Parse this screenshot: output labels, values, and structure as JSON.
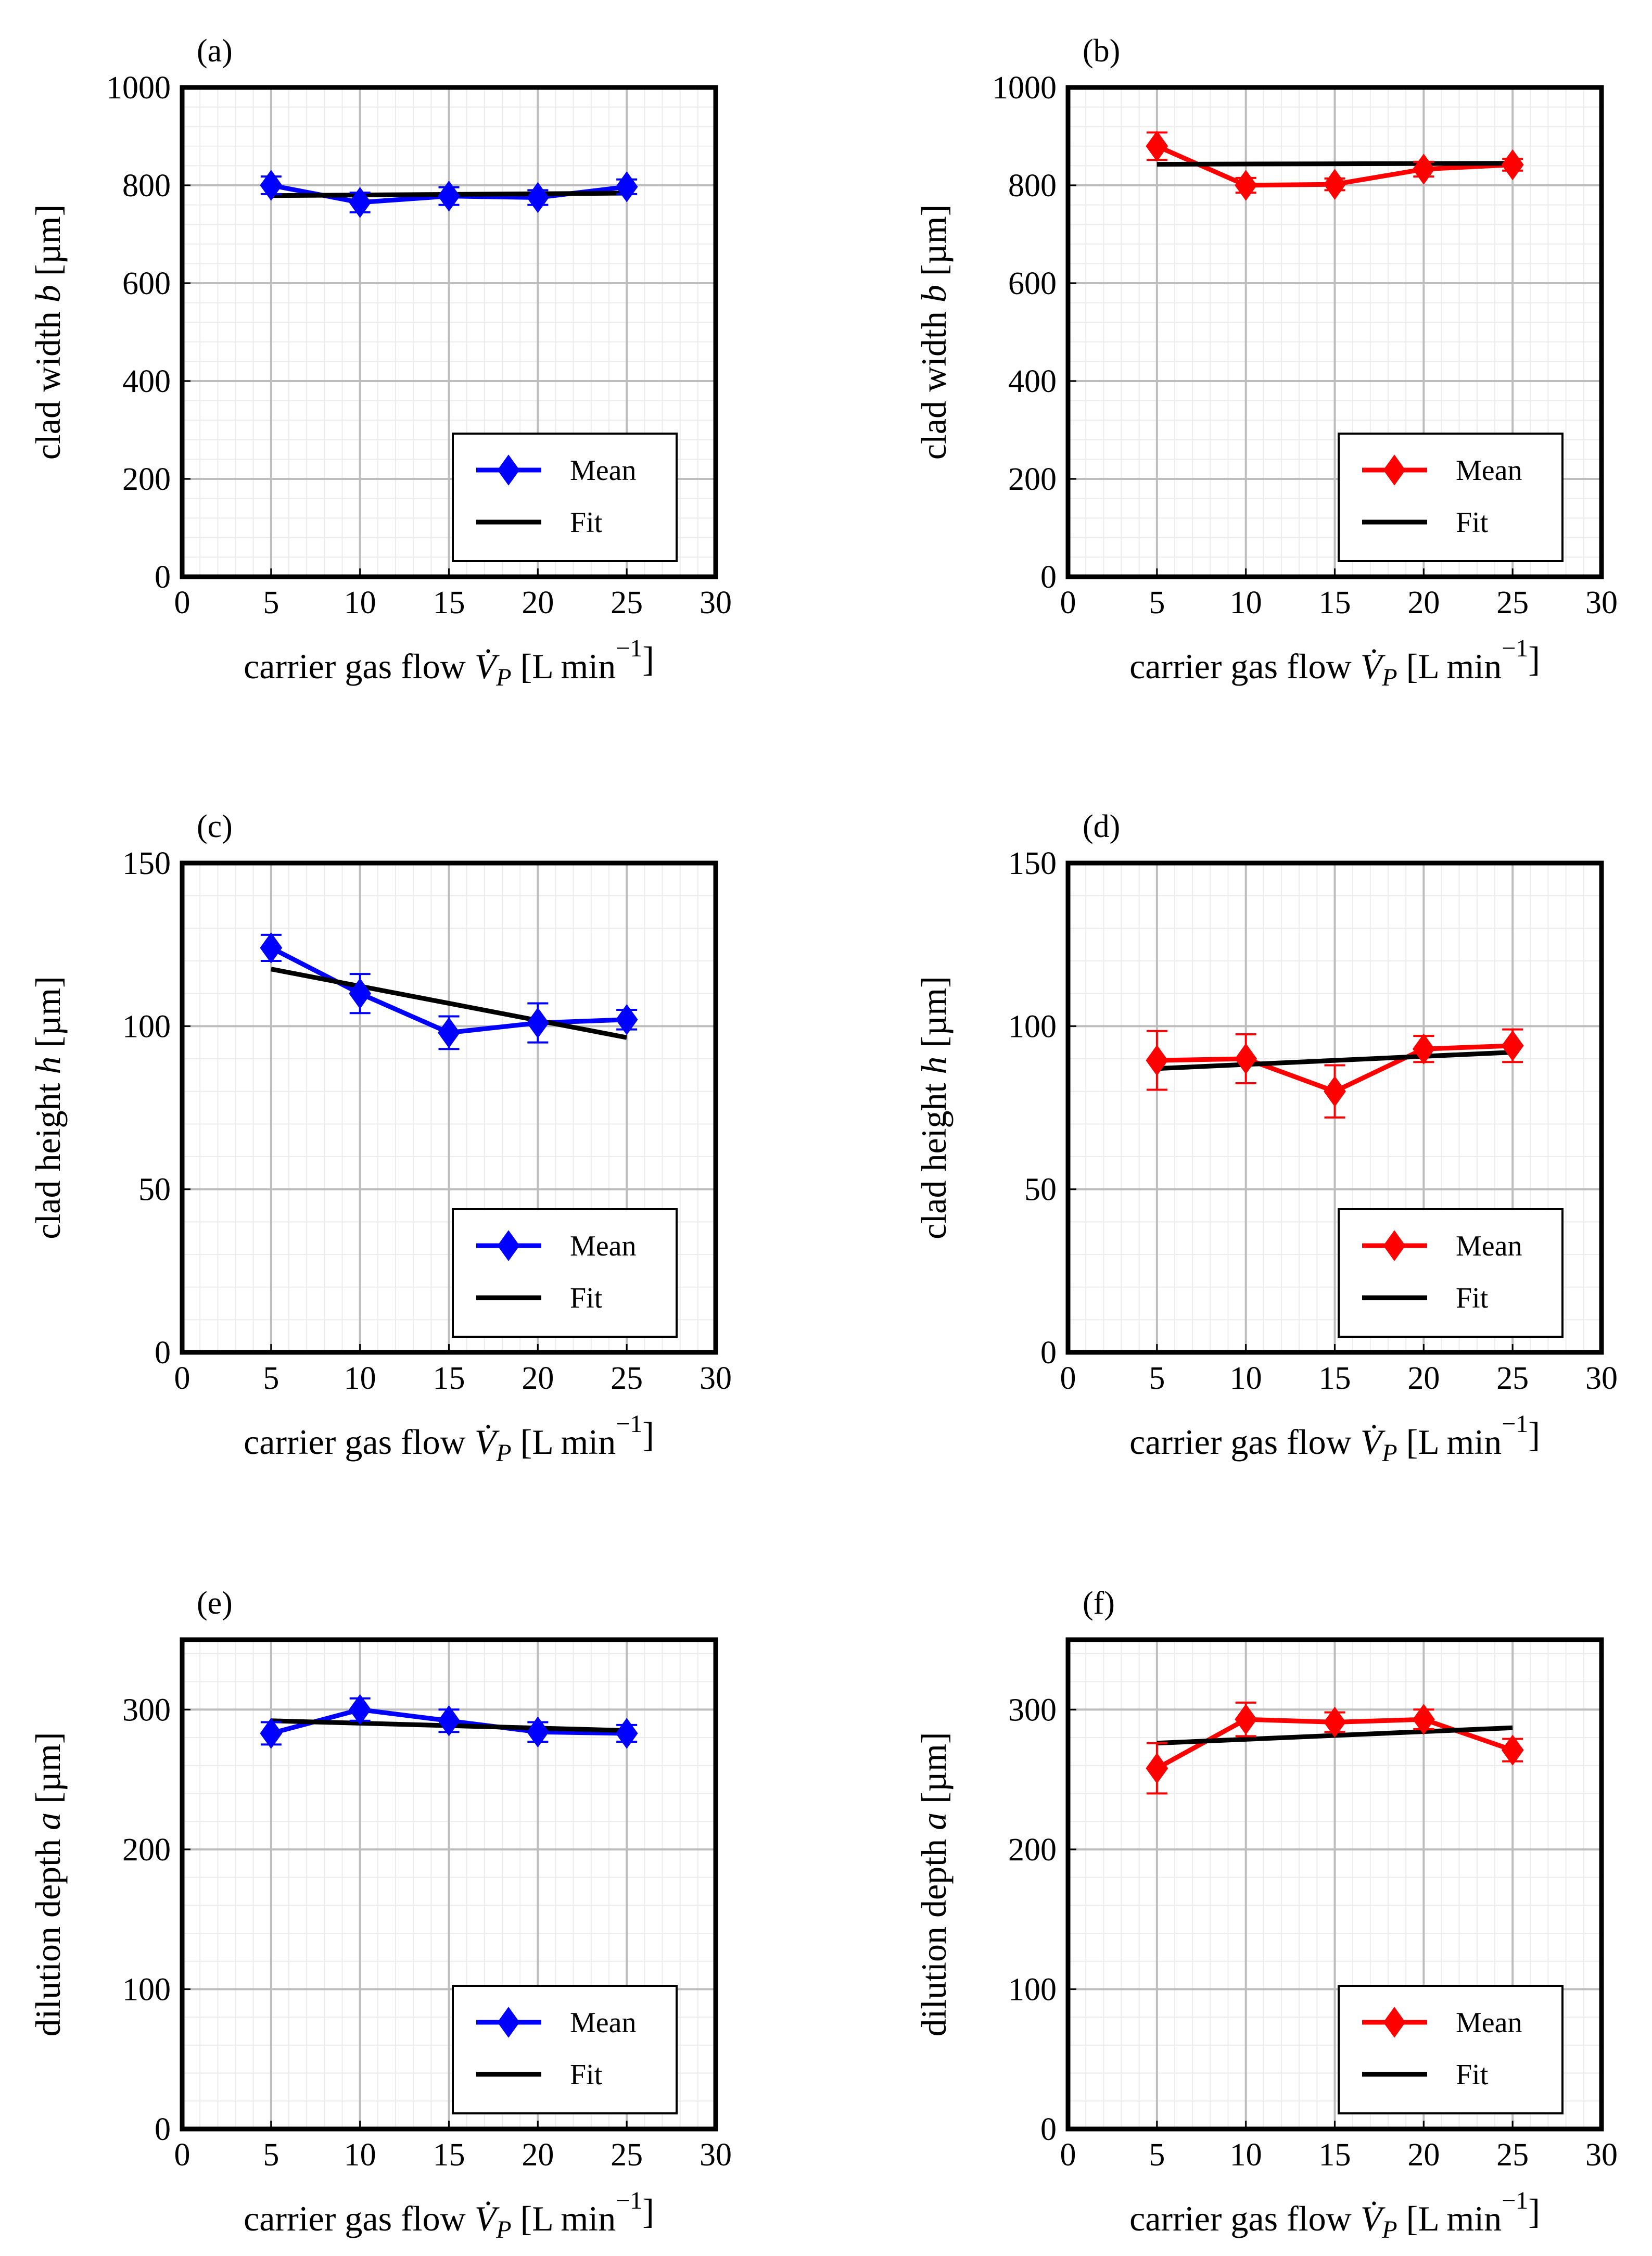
{
  "chart_data": [
    {
      "type": "line",
      "panel_label": "(a)",
      "xlabel": "carrier gas flow V̇P [L min−1]",
      "ylabel": "clad width b [µm]",
      "xlim": [
        0,
        30
      ],
      "ylim": [
        0,
        1000
      ],
      "xticks": [
        0,
        5,
        10,
        15,
        20,
        25,
        30
      ],
      "yticks": [
        0,
        200,
        400,
        600,
        800,
        1000
      ],
      "grid": true,
      "legend_position": "bottom-right",
      "x": [
        5,
        10,
        15,
        20,
        25
      ],
      "series": [
        {
          "name": "Mean",
          "color": "#0000ff",
          "marker": "diamond",
          "values": [
            800,
            765,
            778,
            775,
            797
          ],
          "errors": [
            18,
            20,
            18,
            15,
            15
          ]
        },
        {
          "name": "Fit",
          "color": "#000000",
          "x": [
            5,
            25
          ],
          "values": [
            779,
            784
          ]
        }
      ]
    },
    {
      "type": "line",
      "panel_label": "(b)",
      "xlabel": "carrier gas flow V̇P [L min−1]",
      "ylabel": "clad width b [µm]",
      "xlim": [
        0,
        30
      ],
      "ylim": [
        0,
        1000
      ],
      "xticks": [
        0,
        5,
        10,
        15,
        20,
        25,
        30
      ],
      "yticks": [
        0,
        200,
        400,
        600,
        800,
        1000
      ],
      "grid": true,
      "legend_position": "bottom-right",
      "x": [
        5,
        10,
        15,
        20,
        25
      ],
      "series": [
        {
          "name": "Mean",
          "color": "#ff0000",
          "marker": "diamond",
          "values": [
            880,
            800,
            802,
            833,
            842
          ],
          "errors": [
            28,
            15,
            12,
            15,
            12
          ]
        },
        {
          "name": "Fit",
          "color": "#000000",
          "x": [
            5,
            25
          ],
          "values": [
            843,
            845
          ]
        }
      ]
    },
    {
      "type": "line",
      "panel_label": "(c)",
      "xlabel": "carrier gas flow V̇P [L min−1]",
      "ylabel": "clad height h [µm]",
      "xlim": [
        0,
        30
      ],
      "ylim": [
        0,
        150
      ],
      "xticks": [
        0,
        5,
        10,
        15,
        20,
        25,
        30
      ],
      "yticks": [
        0,
        50,
        100,
        150
      ],
      "grid": true,
      "legend_position": "bottom-right",
      "x": [
        5,
        10,
        15,
        20,
        25
      ],
      "series": [
        {
          "name": "Mean",
          "color": "#0000ff",
          "marker": "diamond",
          "values": [
            124,
            110,
            98,
            101,
            102
          ],
          "errors": [
            4,
            6,
            5,
            6,
            3
          ]
        },
        {
          "name": "Fit",
          "color": "#000000",
          "x": [
            5,
            25
          ],
          "values": [
            117.5,
            96.5
          ]
        }
      ]
    },
    {
      "type": "line",
      "panel_label": "(d)",
      "xlabel": "carrier gas flow V̇P [L min−1]",
      "ylabel": "clad height h [µm]",
      "xlim": [
        0,
        30
      ],
      "ylim": [
        0,
        150
      ],
      "xticks": [
        0,
        5,
        10,
        15,
        20,
        25,
        30
      ],
      "yticks": [
        0,
        50,
        100,
        150
      ],
      "grid": true,
      "legend_position": "bottom-right",
      "x": [
        5,
        10,
        15,
        20,
        25
      ],
      "series": [
        {
          "name": "Mean",
          "color": "#ff0000",
          "marker": "diamond",
          "values": [
            89.5,
            90,
            80,
            93,
            94
          ],
          "errors": [
            9,
            7.5,
            8,
            4,
            5
          ]
        },
        {
          "name": "Fit",
          "color": "#000000",
          "x": [
            5,
            25
          ],
          "values": [
            87,
            92
          ]
        }
      ]
    },
    {
      "type": "line",
      "panel_label": "(e)",
      "xlabel": "carrier gas flow V̇P [L min−1]",
      "ylabel": "dilution depth a [µm]",
      "xlim": [
        0,
        30
      ],
      "ylim": [
        0,
        350
      ],
      "xticks": [
        0,
        5,
        10,
        15,
        20,
        25,
        30
      ],
      "yticks": [
        0,
        100,
        200,
        300
      ],
      "grid": true,
      "legend_position": "bottom-right",
      "x": [
        5,
        10,
        15,
        20,
        25
      ],
      "series": [
        {
          "name": "Mean",
          "color": "#0000ff",
          "marker": "diamond",
          "values": [
            283,
            300,
            292,
            284,
            283
          ],
          "errors": [
            8,
            8,
            8,
            7,
            6
          ]
        },
        {
          "name": "Fit",
          "color": "#000000",
          "x": [
            5,
            25
          ],
          "values": [
            292,
            285
          ]
        }
      ]
    },
    {
      "type": "line",
      "panel_label": "(f)",
      "xlabel": "carrier gas flow V̇P [L min−1]",
      "ylabel": "dilution depth a [µm]",
      "xlim": [
        0,
        30
      ],
      "ylim": [
        0,
        350
      ],
      "xticks": [
        0,
        5,
        10,
        15,
        20,
        25,
        30
      ],
      "yticks": [
        0,
        100,
        200,
        300
      ],
      "grid": true,
      "legend_position": "bottom-right",
      "x": [
        5,
        10,
        15,
        20,
        25
      ],
      "series": [
        {
          "name": "Mean",
          "color": "#ff0000",
          "marker": "diamond",
          "values": [
            258,
            293,
            291,
            293,
            271
          ],
          "errors": [
            18,
            12,
            7,
            7,
            8
          ]
        },
        {
          "name": "Fit",
          "color": "#000000",
          "x": [
            5,
            25
          ],
          "values": [
            276,
            287
          ]
        }
      ]
    }
  ]
}
